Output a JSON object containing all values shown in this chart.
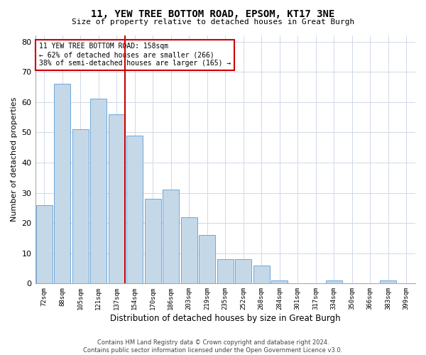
{
  "title": "11, YEW TREE BOTTOM ROAD, EPSOM, KT17 3NE",
  "subtitle": "Size of property relative to detached houses in Great Burgh",
  "xlabel": "Distribution of detached houses by size in Great Burgh",
  "ylabel": "Number of detached properties",
  "categories": [
    "72sqm",
    "88sqm",
    "105sqm",
    "121sqm",
    "137sqm",
    "154sqm",
    "170sqm",
    "186sqm",
    "203sqm",
    "219sqm",
    "235sqm",
    "252sqm",
    "268sqm",
    "284sqm",
    "301sqm",
    "317sqm",
    "334sqm",
    "350sqm",
    "366sqm",
    "383sqm",
    "399sqm"
  ],
  "values": [
    26,
    66,
    51,
    61,
    56,
    49,
    28,
    31,
    22,
    16,
    8,
    8,
    6,
    1,
    0,
    0,
    1,
    0,
    0,
    1,
    0
  ],
  "bar_color": "#c5d8e8",
  "bar_edge_color": "#5b9bd5",
  "highlight_line_color": "#cc0000",
  "annotation_text": "11 YEW TREE BOTTOM ROAD: 158sqm\n← 62% of detached houses are smaller (266)\n38% of semi-detached houses are larger (165) →",
  "annotation_box_color": "#ffffff",
  "annotation_box_edge": "#cc0000",
  "ylim": [
    0,
    82
  ],
  "yticks": [
    0,
    10,
    20,
    30,
    40,
    50,
    60,
    70,
    80
  ],
  "footer_text": "Contains HM Land Registry data © Crown copyright and database right 2024.\nContains public sector information licensed under the Open Government Licence v3.0.",
  "background_color": "#ffffff",
  "grid_color": "#d0d8e8"
}
